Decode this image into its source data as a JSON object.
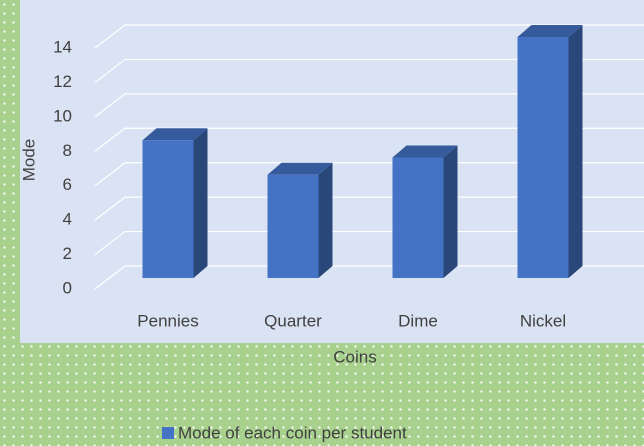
{
  "chart_data": {
    "type": "bar3d",
    "categories": [
      "Pennies",
      "Quarter",
      "Dime",
      "Nickel"
    ],
    "series": [
      {
        "name": "Mode of each coin per student",
        "color": "#4472c4",
        "values": [
          8,
          6,
          7,
          14
        ]
      }
    ],
    "xlabel": "Coins",
    "ylabel": "Mode",
    "ylim": [
      0,
      14
    ],
    "yticks": [
      0,
      2,
      4,
      6,
      8,
      10,
      12,
      14
    ],
    "grid": true,
    "legend": "bottom"
  }
}
